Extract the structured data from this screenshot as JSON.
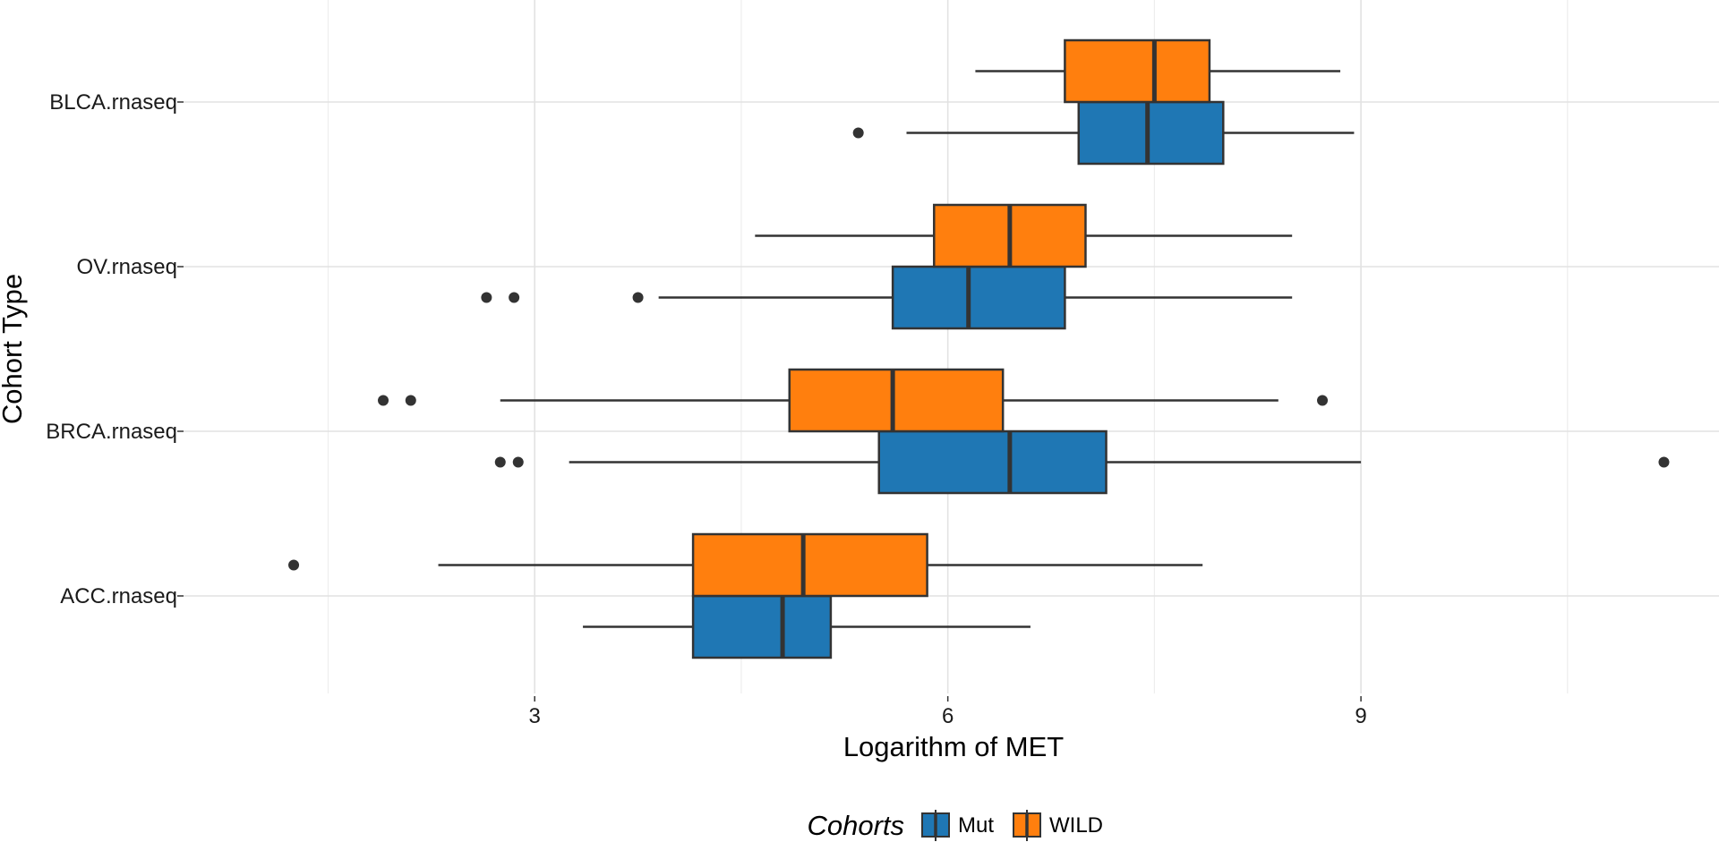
{
  "chart_data": {
    "type": "boxplot",
    "orientation": "horizontal",
    "xlabel": "Logarithm of MET",
    "ylabel": "Cohort Type",
    "xlim": [
      0.45,
      11.6
    ],
    "x_ticks": [
      3,
      6,
      9
    ],
    "x_tick_labels": [
      "3",
      "6",
      "9"
    ],
    "grid": true,
    "legend": {
      "title": "Cohorts",
      "position": "bottom",
      "entries": [
        {
          "name": "Mut",
          "color": "#1f77b4"
        },
        {
          "name": "WILD",
          "color": "#ff7f0e"
        }
      ]
    },
    "categories": [
      "BLCA.rnaseq",
      "OV.rnaseq",
      "BRCA.rnaseq",
      "ACC.rnaseq"
    ],
    "series": [
      {
        "name": "Mut",
        "color": "#1f77b4",
        "boxes": [
          {
            "category": "BLCA.rnaseq",
            "whisker_low": 5.7,
            "q1": 6.95,
            "median": 7.45,
            "q3": 8.0,
            "whisker_high": 8.95,
            "outliers": [
              5.35
            ]
          },
          {
            "category": "OV.rnaseq",
            "whisker_low": 3.9,
            "q1": 5.6,
            "median": 6.15,
            "q3": 6.85,
            "whisker_high": 8.5,
            "outliers": [
              2.65,
              2.85,
              3.75
            ]
          },
          {
            "category": "BRCA.rnaseq",
            "whisker_low": 3.25,
            "q1": 5.5,
            "median": 6.45,
            "q3": 7.15,
            "whisker_high": 9.0,
            "outliers": [
              2.75,
              2.88,
              11.2
            ]
          },
          {
            "category": "ACC.rnaseq",
            "whisker_low": 3.35,
            "q1": 4.15,
            "median": 4.8,
            "q3": 5.15,
            "whisker_high": 6.6,
            "outliers": []
          }
        ]
      },
      {
        "name": "WILD",
        "color": "#ff7f0e",
        "boxes": [
          {
            "category": "BLCA.rnaseq",
            "whisker_low": 6.2,
            "q1": 6.85,
            "median": 7.5,
            "q3": 7.9,
            "whisker_high": 8.85,
            "outliers": []
          },
          {
            "category": "OV.rnaseq",
            "whisker_low": 4.6,
            "q1": 5.9,
            "median": 6.45,
            "q3": 7.0,
            "whisker_high": 8.5,
            "outliers": []
          },
          {
            "category": "BRCA.rnaseq",
            "whisker_low": 2.75,
            "q1": 4.85,
            "median": 5.6,
            "q3": 6.4,
            "whisker_high": 8.4,
            "outliers": [
              1.9,
              2.1,
              8.72
            ]
          },
          {
            "category": "ACC.rnaseq",
            "whisker_low": 2.3,
            "q1": 4.15,
            "median": 4.95,
            "q3": 5.85,
            "whisker_high": 7.85,
            "outliers": [
              1.25
            ]
          }
        ]
      }
    ]
  }
}
